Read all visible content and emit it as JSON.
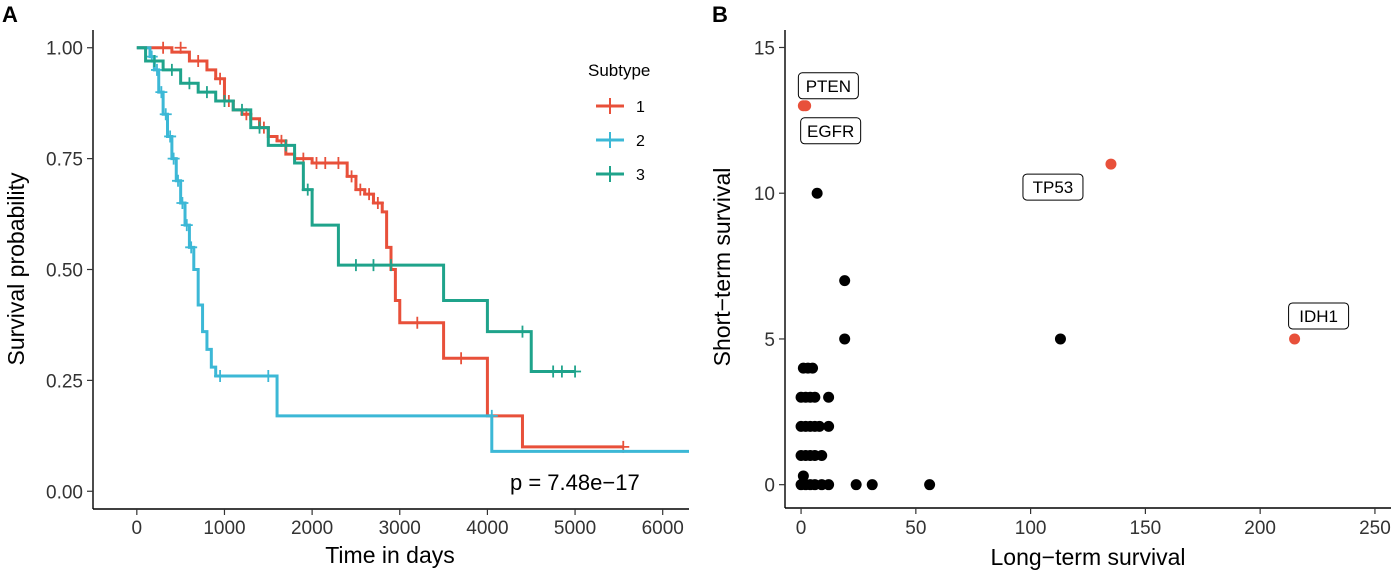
{
  "chart_data": [
    {
      "panel": "A",
      "type": "line",
      "subtype": "kaplan-meier",
      "xlabel": "Time in days",
      "ylabel": "Survival probability",
      "xlim": [
        -500,
        6300
      ],
      "ylim": [
        -0.04,
        1.04
      ],
      "x_ticks": [
        0,
        1000,
        2000,
        3000,
        4000,
        5000,
        6000
      ],
      "y_ticks": [
        0.0,
        0.25,
        0.5,
        0.75,
        1.0
      ],
      "x_tick_labels": [
        "0",
        "1000",
        "2000",
        "3000",
        "4000",
        "5000",
        "6000"
      ],
      "y_tick_labels": [
        "0.00",
        "0.25",
        "0.50",
        "0.75",
        "1.00"
      ],
      "legend_title": "Subtype",
      "annotation": "p = 7.48e−17",
      "series": [
        {
          "name": "1",
          "color": "#e8503a",
          "steps": [
            [
              0,
              1.0
            ],
            [
              400,
              0.99
            ],
            [
              600,
              0.97
            ],
            [
              800,
              0.95
            ],
            [
              900,
              0.93
            ],
            [
              1000,
              0.88
            ],
            [
              1100,
              0.86
            ],
            [
              1200,
              0.85
            ],
            [
              1300,
              0.84
            ],
            [
              1400,
              0.82
            ],
            [
              1500,
              0.8
            ],
            [
              1600,
              0.79
            ],
            [
              1700,
              0.76
            ],
            [
              1800,
              0.75
            ],
            [
              2000,
              0.74
            ],
            [
              2200,
              0.74
            ],
            [
              2400,
              0.71
            ],
            [
              2500,
              0.68
            ],
            [
              2600,
              0.67
            ],
            [
              2700,
              0.65
            ],
            [
              2800,
              0.63
            ],
            [
              2850,
              0.55
            ],
            [
              2900,
              0.5
            ],
            [
              2950,
              0.43
            ],
            [
              3000,
              0.38
            ],
            [
              3500,
              0.3
            ],
            [
              4000,
              0.17
            ],
            [
              4400,
              0.1
            ],
            [
              5550,
              0.1
            ]
          ],
          "censors": [
            [
              300,
              1.0
            ],
            [
              500,
              1.0
            ],
            [
              700,
              0.97
            ],
            [
              950,
              0.93
            ],
            [
              1050,
              0.88
            ],
            [
              1250,
              0.85
            ],
            [
              1450,
              0.82
            ],
            [
              1650,
              0.79
            ],
            [
              1900,
              0.75
            ],
            [
              2050,
              0.74
            ],
            [
              2150,
              0.74
            ],
            [
              2300,
              0.74
            ],
            [
              2450,
              0.71
            ],
            [
              2550,
              0.68
            ],
            [
              2650,
              0.67
            ],
            [
              2750,
              0.65
            ],
            [
              3200,
              0.38
            ],
            [
              3700,
              0.3
            ],
            [
              5550,
              0.1
            ]
          ]
        },
        {
          "name": "2",
          "color": "#3cb8d6",
          "steps": [
            [
              0,
              1.0
            ],
            [
              150,
              0.98
            ],
            [
              200,
              0.95
            ],
            [
              250,
              0.9
            ],
            [
              300,
              0.85
            ],
            [
              350,
              0.8
            ],
            [
              400,
              0.75
            ],
            [
              450,
              0.7
            ],
            [
              500,
              0.65
            ],
            [
              550,
              0.6
            ],
            [
              600,
              0.55
            ],
            [
              650,
              0.5
            ],
            [
              700,
              0.42
            ],
            [
              750,
              0.36
            ],
            [
              800,
              0.32
            ],
            [
              850,
              0.28
            ],
            [
              900,
              0.26
            ],
            [
              1600,
              0.17
            ],
            [
              4050,
              0.09
            ],
            [
              6300,
              0.09
            ]
          ],
          "censors": [
            [
              170,
              0.98
            ],
            [
              230,
              0.95
            ],
            [
              280,
              0.9
            ],
            [
              330,
              0.85
            ],
            [
              380,
              0.8
            ],
            [
              420,
              0.75
            ],
            [
              470,
              0.7
            ],
            [
              520,
              0.65
            ],
            [
              570,
              0.6
            ],
            [
              620,
              0.55
            ],
            [
              950,
              0.26
            ],
            [
              1500,
              0.26
            ],
            [
              4050,
              0.17
            ]
          ]
        },
        {
          "name": "3",
          "color": "#1fa38b",
          "steps": [
            [
              0,
              1.0
            ],
            [
              100,
              0.97
            ],
            [
              300,
              0.95
            ],
            [
              500,
              0.92
            ],
            [
              700,
              0.9
            ],
            [
              900,
              0.88
            ],
            [
              1100,
              0.86
            ],
            [
              1300,
              0.82
            ],
            [
              1500,
              0.78
            ],
            [
              1800,
              0.74
            ],
            [
              1900,
              0.68
            ],
            [
              2000,
              0.6
            ],
            [
              2300,
              0.51
            ],
            [
              3000,
              0.51
            ],
            [
              3500,
              0.43
            ],
            [
              4000,
              0.36
            ],
            [
              4500,
              0.27
            ],
            [
              5000,
              0.27
            ]
          ],
          "censors": [
            [
              200,
              0.97
            ],
            [
              400,
              0.95
            ],
            [
              600,
              0.92
            ],
            [
              800,
              0.9
            ],
            [
              1000,
              0.88
            ],
            [
              1200,
              0.86
            ],
            [
              1400,
              0.82
            ],
            [
              1700,
              0.78
            ],
            [
              1950,
              0.68
            ],
            [
              2500,
              0.51
            ],
            [
              2700,
              0.51
            ],
            [
              2900,
              0.51
            ],
            [
              4400,
              0.36
            ],
            [
              4750,
              0.27
            ],
            [
              4850,
              0.27
            ],
            [
              5000,
              0.27
            ]
          ]
        }
      ]
    },
    {
      "panel": "B",
      "type": "scatter",
      "xlabel": "Long−term survival",
      "ylabel": "Short−term survival",
      "xlim": [
        -7,
        257
      ],
      "ylim": [
        -0.8,
        15.6
      ],
      "x_ticks": [
        0,
        50,
        100,
        150,
        200,
        250
      ],
      "y_ticks": [
        0,
        5,
        10,
        15
      ],
      "x_tick_labels": [
        "0",
        "50",
        "100",
        "150",
        "200",
        "250"
      ],
      "y_tick_labels": [
        "0",
        "5",
        "10",
        "15"
      ],
      "highlight_color": "#e8503a",
      "base_color": "#000000",
      "labeled_points": [
        {
          "label": "PTEN",
          "x": 1,
          "y": 13
        },
        {
          "label": "EGFR",
          "x": 2,
          "y": 13
        },
        {
          "label": "TP53",
          "x": 135,
          "y": 11
        },
        {
          "label": "IDH1",
          "x": 215,
          "y": 5
        }
      ],
      "points": [
        {
          "x": 7,
          "y": 10
        },
        {
          "x": 19,
          "y": 7
        },
        {
          "x": 19,
          "y": 5
        },
        {
          "x": 113,
          "y": 5
        },
        {
          "x": 1,
          "y": 4
        },
        {
          "x": 3,
          "y": 4
        },
        {
          "x": 5,
          "y": 4
        },
        {
          "x": 0,
          "y": 3
        },
        {
          "x": 2,
          "y": 3
        },
        {
          "x": 4,
          "y": 3
        },
        {
          "x": 6,
          "y": 3
        },
        {
          "x": 12,
          "y": 3
        },
        {
          "x": 0,
          "y": 2
        },
        {
          "x": 2,
          "y": 2
        },
        {
          "x": 4,
          "y": 2
        },
        {
          "x": 6,
          "y": 2
        },
        {
          "x": 8,
          "y": 2
        },
        {
          "x": 12,
          "y": 2
        },
        {
          "x": 0,
          "y": 1
        },
        {
          "x": 2,
          "y": 1
        },
        {
          "x": 4,
          "y": 1
        },
        {
          "x": 6,
          "y": 1
        },
        {
          "x": 9,
          "y": 1
        },
        {
          "x": 1,
          "y": 0.3
        },
        {
          "x": 0,
          "y": 0
        },
        {
          "x": 2,
          "y": 0
        },
        {
          "x": 4,
          "y": 0
        },
        {
          "x": 6,
          "y": 0
        },
        {
          "x": 9,
          "y": 0
        },
        {
          "x": 12,
          "y": 0
        },
        {
          "x": 24,
          "y": 0
        },
        {
          "x": 31,
          "y": 0
        },
        {
          "x": 56,
          "y": 0
        }
      ]
    }
  ]
}
